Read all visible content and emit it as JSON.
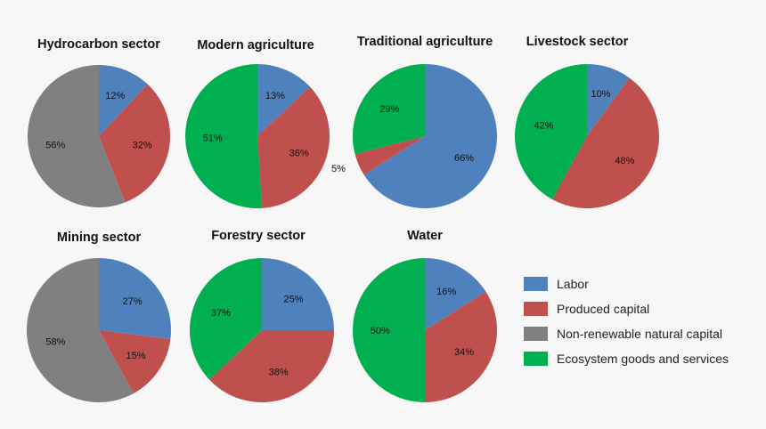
{
  "colors": {
    "labor": "#4f81bd",
    "produced": "#c0504d",
    "nonrenewable": "#808080",
    "ecosystem": "#00b050"
  },
  "chart_data": [
    {
      "type": "pie",
      "title": "Hydrocarbon sector",
      "slices": [
        {
          "category": "labor",
          "value": 12,
          "label": "12%"
        },
        {
          "category": "produced",
          "value": 32,
          "label": "32%"
        },
        {
          "category": "nonrenewable",
          "value": 56,
          "label": "56%"
        }
      ]
    },
    {
      "type": "pie",
      "title": "Modern agriculture",
      "slices": [
        {
          "category": "labor",
          "value": 13,
          "label": "13%"
        },
        {
          "category": "produced",
          "value": 36,
          "label": "36%"
        },
        {
          "category": "ecosystem",
          "value": 51,
          "label": "51%"
        }
      ]
    },
    {
      "type": "pie",
      "title": "Traditional agriculture",
      "slices": [
        {
          "category": "labor",
          "value": 66,
          "label": "66%"
        },
        {
          "category": "produced",
          "value": 5,
          "label": "5%"
        },
        {
          "category": "ecosystem",
          "value": 29,
          "label": "29%"
        }
      ]
    },
    {
      "type": "pie",
      "title": "Livestock sector",
      "slices": [
        {
          "category": "labor",
          "value": 10,
          "label": "10%"
        },
        {
          "category": "produced",
          "value": 48,
          "label": "48%"
        },
        {
          "category": "ecosystem",
          "value": 42,
          "label": "42%"
        }
      ]
    },
    {
      "type": "pie",
      "title": "Mining sector",
      "slices": [
        {
          "category": "labor",
          "value": 27,
          "label": "27%"
        },
        {
          "category": "produced",
          "value": 15,
          "label": "15%"
        },
        {
          "category": "nonrenewable",
          "value": 58,
          "label": "58%"
        }
      ]
    },
    {
      "type": "pie",
      "title": "Forestry sector",
      "slices": [
        {
          "category": "labor",
          "value": 25,
          "label": "25%"
        },
        {
          "category": "produced",
          "value": 38,
          "label": "38%"
        },
        {
          "category": "ecosystem",
          "value": 37,
          "label": "37%"
        }
      ]
    },
    {
      "type": "pie",
      "title": "Water",
      "slices": [
        {
          "category": "labor",
          "value": 16,
          "label": "16%"
        },
        {
          "category": "produced",
          "value": 34,
          "label": "34%"
        },
        {
          "category": "ecosystem",
          "value": 50,
          "label": "50%"
        }
      ]
    }
  ],
  "legend": [
    {
      "category": "labor",
      "label": "Labor"
    },
    {
      "category": "produced",
      "label": "Produced capital"
    },
    {
      "category": "nonrenewable",
      "label": "Non-renewable natural capital"
    },
    {
      "category": "ecosystem",
      "label": "Ecosystem goods and services"
    }
  ]
}
